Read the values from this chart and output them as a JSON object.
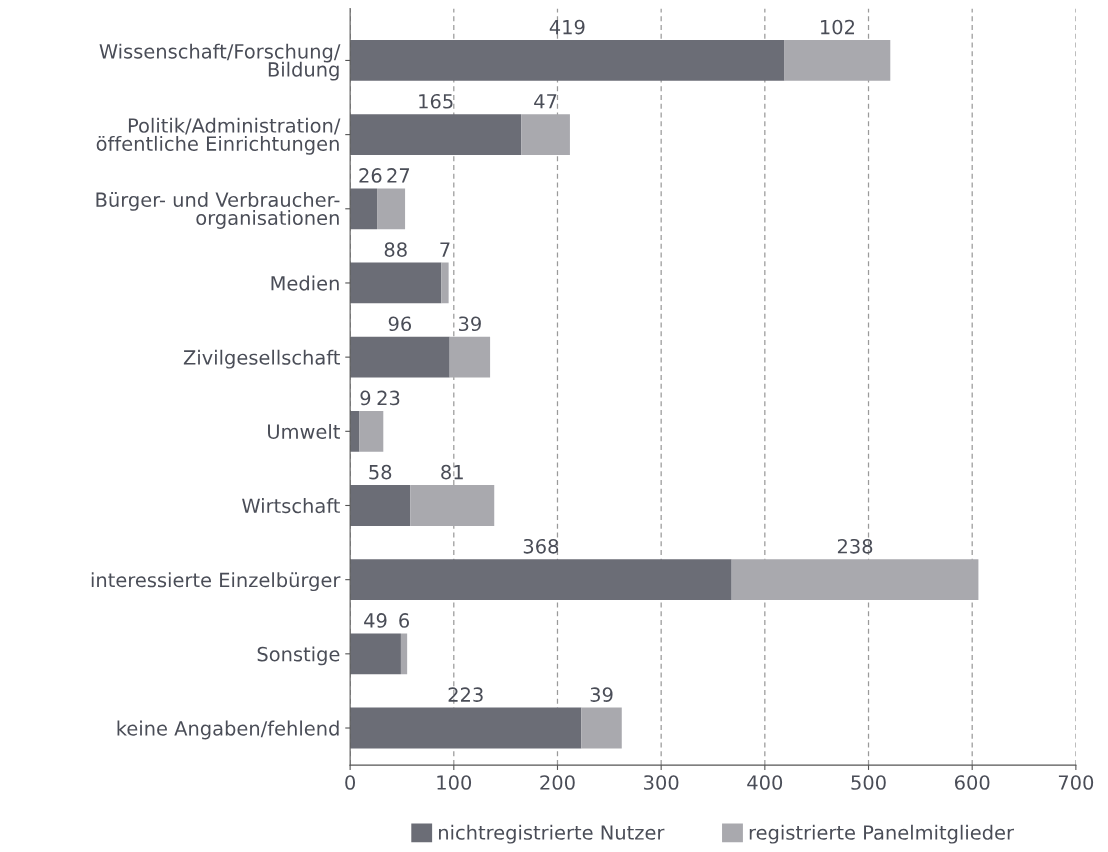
{
  "chart_data": {
    "type": "bar",
    "orientation": "horizontal",
    "stacked": true,
    "categories": [
      "Wissenschaft/Forschung/\nBildung",
      "Politik/Administration/\nöffentliche Einrichtungen",
      "Bürger- und Verbraucher-\norganisationen",
      "Medien",
      "Zivilgesellschaft",
      "Umwelt",
      "Wirtschaft",
      "interessierte Einzelbürger",
      "Sonstige",
      "keine Angaben/fehlend"
    ],
    "series": [
      {
        "name": "nichtregistrierte Nutzer",
        "color": "#6b6d76",
        "values": [
          419,
          165,
          26,
          88,
          96,
          9,
          58,
          368,
          49,
          223
        ]
      },
      {
        "name": "registrierte Panelmitglieder",
        "color": "#a9a9ae",
        "values": [
          102,
          47,
          27,
          7,
          39,
          23,
          81,
          238,
          6,
          39
        ]
      }
    ],
    "xlim": [
      0,
      700
    ],
    "xticks": [
      0,
      100,
      200,
      300,
      400,
      500,
      600,
      700
    ],
    "grid": "x",
    "legend": "bottom",
    "data_labels": true
  }
}
